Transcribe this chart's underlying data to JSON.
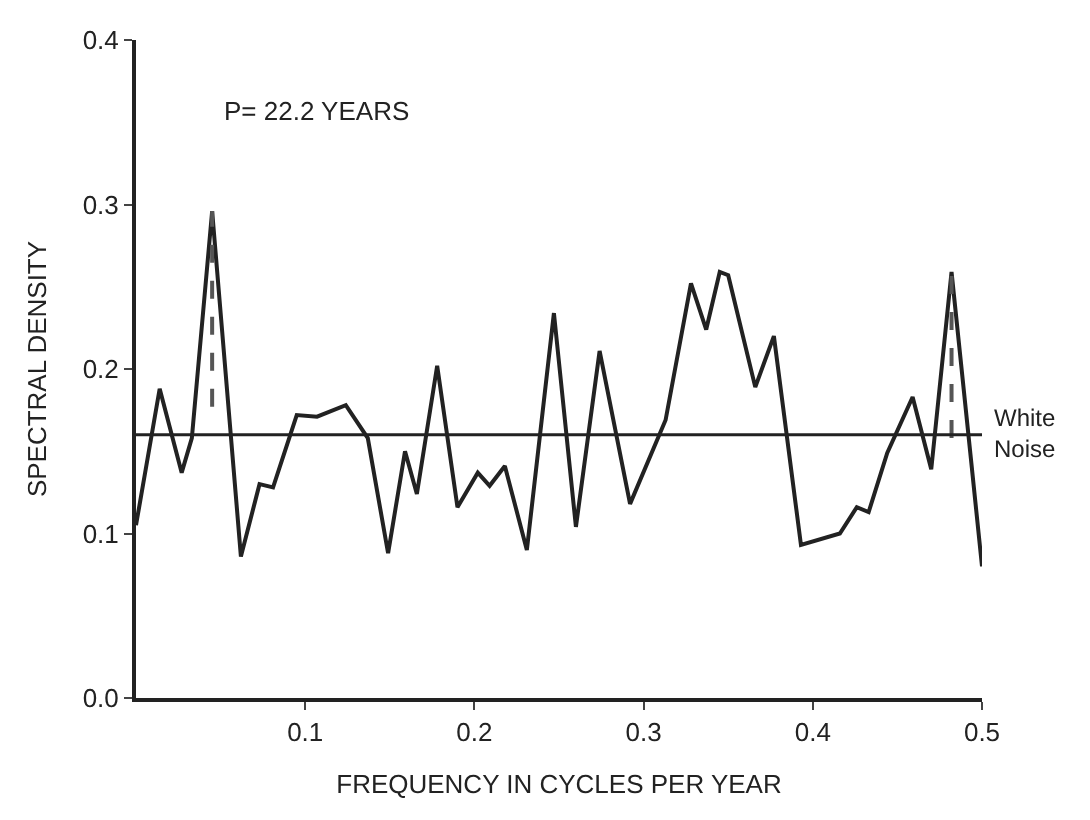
{
  "chart_data": {
    "type": "line",
    "xlabel": "FREQUENCY IN CYCLES PER YEAR",
    "ylabel": "SPECTRAL DENSITY",
    "annotations": [
      "P= 22.2 YEARS"
    ],
    "xlim": [
      0,
      0.5
    ],
    "ylim": [
      0,
      0.4
    ],
    "xticks": [
      0.1,
      0.2,
      0.3,
      0.4,
      0.5
    ],
    "yticks": [
      {
        "value": 0,
        "label": "0.0"
      },
      0.1,
      0.2,
      0.3,
      0.4
    ],
    "marker": "none",
    "ref_lines": [
      {
        "axis": "y",
        "value": 0.16,
        "label": "White Noise",
        "color": "#222222"
      }
    ],
    "series": [
      {
        "color": "#222222",
        "line_style": "solid",
        "x": [
          0.0,
          0.014,
          0.027,
          0.033,
          0.045,
          0.062,
          0.073,
          0.081,
          0.095,
          0.107,
          0.124,
          0.137,
          0.149,
          0.159,
          0.166,
          0.178,
          0.19,
          0.202,
          0.209,
          0.218,
          0.231,
          0.247,
          0.26,
          0.274,
          0.292,
          0.313,
          0.328,
          0.337,
          0.345,
          0.35,
          0.366,
          0.377,
          0.393,
          0.416,
          0.426,
          0.433,
          0.444,
          0.459,
          0.47,
          0.482,
          0.494,
          0.5
        ],
        "values": [
          0.105,
          0.188,
          0.137,
          0.158,
          0.296,
          0.086,
          0.13,
          0.128,
          0.172,
          0.171,
          0.178,
          0.158,
          0.088,
          0.15,
          0.124,
          0.202,
          0.116,
          0.137,
          0.129,
          0.141,
          0.09,
          0.234,
          0.104,
          0.211,
          0.118,
          0.169,
          0.252,
          0.224,
          0.259,
          0.257,
          0.189,
          0.22,
          0.093,
          0.1,
          0.116,
          0.113,
          0.149,
          0.183,
          0.139,
          0.259,
          0.14,
          0.08
        ]
      },
      {
        "color": "#555555",
        "line_style": "dashed",
        "x": [
          0.045,
          0.045
        ],
        "values": [
          0.177,
          0.296
        ]
      },
      {
        "color": "#555555",
        "line_style": "dashed",
        "x": [
          0.482,
          0.482
        ],
        "values": [
          0.158,
          0.259
        ]
      }
    ]
  }
}
